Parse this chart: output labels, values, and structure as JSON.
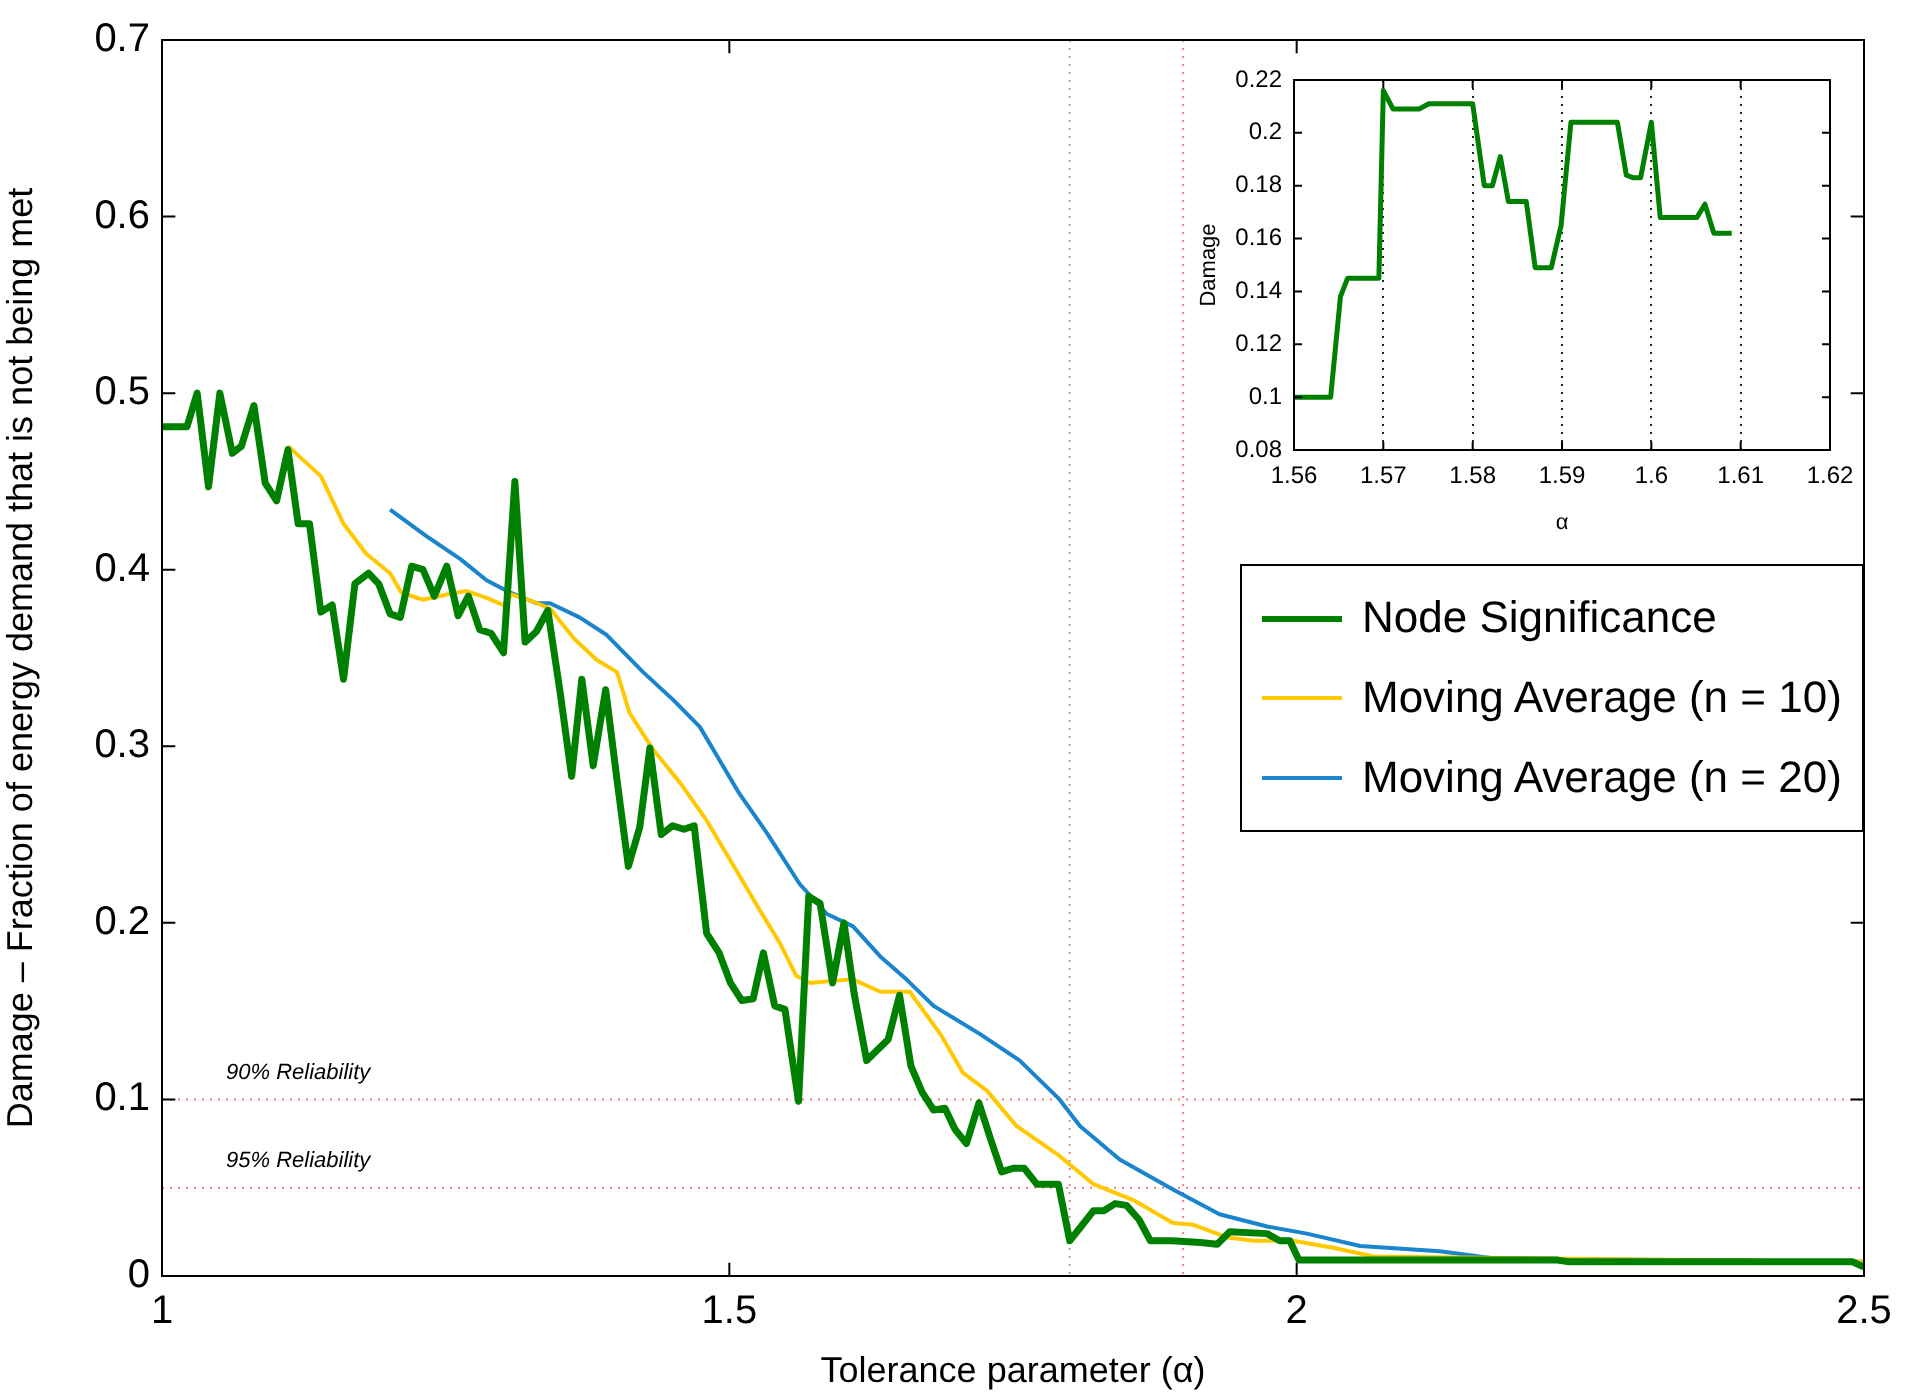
{
  "chart_data": [
    {
      "type": "line",
      "xlabel": "Tolerance parameter (α)",
      "ylabel": "Damage – Fraction of energy demand that is not being met",
      "xlim": [
        1,
        2.5
      ],
      "xticks": [
        1,
        1.5,
        2,
        2.5
      ],
      "ylim": [
        0,
        0.7
      ],
      "yticks": [
        0,
        0.1,
        0.2,
        0.3,
        0.4,
        0.5,
        0.6,
        0.7
      ],
      "grid": false,
      "legend": "right",
      "ref_lines": [
        {
          "axis": "y",
          "value": 0.1,
          "label": "90% Reliability",
          "color": "#f08080"
        },
        {
          "axis": "y",
          "value": 0.05,
          "label": "95% Reliability",
          "color": "#f08080"
        },
        {
          "axis": "x",
          "value": 1.8,
          "color": "#d09090"
        },
        {
          "axis": "x",
          "value": 1.9,
          "color": "#f08080"
        }
      ],
      "series": [
        {
          "name": "Node Significance",
          "color": "#008000",
          "x": [
            1.0,
            1.013,
            1.022,
            1.031,
            1.041,
            1.051,
            1.062,
            1.07,
            1.081,
            1.091,
            1.101,
            1.111,
            1.12,
            1.13,
            1.14,
            1.15,
            1.16,
            1.17,
            1.182,
            1.191,
            1.201,
            1.21,
            1.22,
            1.23,
            1.24,
            1.251,
            1.261,
            1.27,
            1.28,
            1.29,
            1.301,
            1.311,
            1.32,
            1.33,
            1.34,
            1.351,
            1.361,
            1.37,
            1.38,
            1.391,
            1.401,
            1.411,
            1.421,
            1.43,
            1.44,
            1.45,
            1.46,
            1.469,
            1.48,
            1.491,
            1.501,
            1.511,
            1.521,
            1.53,
            1.54,
            1.549,
            1.561,
            1.57,
            1.58,
            1.591,
            1.601,
            1.61,
            1.621,
            1.632,
            1.64,
            1.65,
            1.66,
            1.67,
            1.68,
            1.69,
            1.699,
            1.709,
            1.72,
            1.73,
            1.74,
            1.75,
            1.76,
            1.771,
            1.79,
            1.8,
            1.81,
            1.821,
            1.83,
            1.84,
            1.85,
            1.861,
            1.871,
            1.89,
            1.915,
            1.93,
            1.941,
            1.974,
            1.985,
            1.994,
            2.002,
            2.23,
            2.24,
            2.49,
            2.5
          ],
          "values": [
            0.481,
            0.481,
            0.481,
            0.5,
            0.447,
            0.5,
            0.466,
            0.47,
            0.493,
            0.449,
            0.439,
            0.468,
            0.426,
            0.426,
            0.376,
            0.38,
            0.338,
            0.392,
            0.398,
            0.392,
            0.375,
            0.373,
            0.402,
            0.4,
            0.385,
            0.402,
            0.374,
            0.385,
            0.366,
            0.364,
            0.353,
            0.45,
            0.359,
            0.365,
            0.377,
            0.33,
            0.283,
            0.338,
            0.289,
            0.332,
            0.281,
            0.232,
            0.254,
            0.299,
            0.25,
            0.255,
            0.253,
            0.255,
            0.194,
            0.183,
            0.166,
            0.156,
            0.157,
            0.183,
            0.153,
            0.151,
            0.099,
            0.215,
            0.211,
            0.166,
            0.2,
            0.16,
            0.122,
            0.129,
            0.134,
            0.159,
            0.119,
            0.104,
            0.094,
            0.095,
            0.083,
            0.075,
            0.098,
            0.078,
            0.059,
            0.061,
            0.061,
            0.052,
            0.052,
            0.02,
            0.028,
            0.037,
            0.037,
            0.041,
            0.04,
            0.032,
            0.02,
            0.02,
            0.019,
            0.018,
            0.025,
            0.024,
            0.02,
            0.02,
            0.009,
            0.009,
            0.008,
            0.008,
            0.005
          ]
        },
        {
          "name": "Moving Average (n = 10)",
          "color": "#ffc800",
          "x": [
            1.111,
            1.14,
            1.16,
            1.18,
            1.201,
            1.211,
            1.23,
            1.251,
            1.268,
            1.286,
            1.301,
            1.308,
            1.327,
            1.342,
            1.363,
            1.383,
            1.401,
            1.412,
            1.433,
            1.457,
            1.48,
            1.504,
            1.527,
            1.545,
            1.559,
            1.571,
            1.589,
            1.609,
            1.633,
            1.659,
            1.686,
            1.706,
            1.727,
            1.753,
            1.791,
            1.821,
            1.856,
            1.891,
            1.909,
            1.938,
            1.962,
            1.997,
            2.032,
            2.068,
            2.5
          ],
          "values": [
            0.47,
            0.453,
            0.426,
            0.409,
            0.398,
            0.387,
            0.383,
            0.386,
            0.388,
            0.384,
            0.38,
            0.386,
            0.382,
            0.378,
            0.361,
            0.349,
            0.342,
            0.319,
            0.298,
            0.279,
            0.258,
            0.232,
            0.207,
            0.188,
            0.17,
            0.166,
            0.167,
            0.168,
            0.161,
            0.161,
            0.137,
            0.115,
            0.105,
            0.085,
            0.068,
            0.052,
            0.043,
            0.03,
            0.029,
            0.022,
            0.02,
            0.02,
            0.016,
            0.011,
            0.008
          ]
        },
        {
          "name": "Moving Average (n = 20)",
          "color": "#1a84cc",
          "x": [
            1.201,
            1.233,
            1.263,
            1.286,
            1.307,
            1.33,
            1.342,
            1.368,
            1.392,
            1.424,
            1.451,
            1.474,
            1.509,
            1.533,
            1.562,
            1.586,
            1.609,
            1.633,
            1.656,
            1.68,
            1.721,
            1.756,
            1.791,
            1.809,
            1.844,
            1.891,
            1.932,
            1.974,
            2.009,
            2.056,
            2.126,
            2.173,
            2.5
          ],
          "values": [
            0.434,
            0.419,
            0.406,
            0.394,
            0.387,
            0.381,
            0.381,
            0.373,
            0.363,
            0.342,
            0.326,
            0.311,
            0.273,
            0.251,
            0.222,
            0.205,
            0.198,
            0.181,
            0.168,
            0.153,
            0.137,
            0.122,
            0.1,
            0.085,
            0.066,
            0.049,
            0.035,
            0.028,
            0.024,
            0.017,
            0.014,
            0.01,
            0.008
          ]
        }
      ]
    },
    {
      "type": "line",
      "xlabel": "α",
      "ylabel": "Damage",
      "xlim": [
        1.56,
        1.62
      ],
      "xticks": [
        1.56,
        1.57,
        1.58,
        1.59,
        1.6,
        1.61,
        1.62
      ],
      "ylim": [
        0.08,
        0.22
      ],
      "yticks": [
        0.08,
        0.1,
        0.12,
        0.14,
        0.16,
        0.18,
        0.2,
        0.22
      ],
      "grid": "x",
      "series": [
        {
          "color": "#008000",
          "x": [
            1.56,
            1.5641,
            1.5652,
            1.566,
            1.5695,
            1.57,
            1.5711,
            1.574,
            1.5751,
            1.58,
            1.5813,
            1.5822,
            1.5831,
            1.584,
            1.586,
            1.587,
            1.5888,
            1.5899,
            1.591,
            1.5962,
            1.5972,
            1.598,
            1.5988,
            1.6,
            1.601,
            1.6051,
            1.606,
            1.607,
            1.609
          ],
          "values": [
            0.1,
            0.1,
            0.138,
            0.145,
            0.145,
            0.216,
            0.209,
            0.209,
            0.211,
            0.211,
            0.18,
            0.18,
            0.191,
            0.174,
            0.174,
            0.149,
            0.149,
            0.165,
            0.204,
            0.204,
            0.184,
            0.183,
            0.183,
            0.204,
            0.168,
            0.168,
            0.173,
            0.162,
            0.162
          ]
        }
      ]
    }
  ]
}
